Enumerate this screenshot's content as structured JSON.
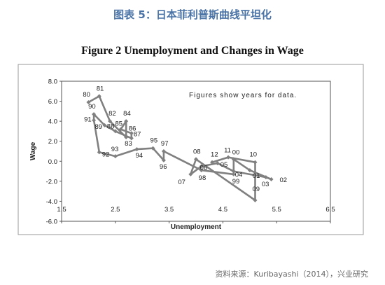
{
  "caption": "图表 5：日本菲利普斯曲线平坦化",
  "source": "资料来源：Kuribayashi（2014），兴业研究",
  "chart_data": {
    "type": "line",
    "title": "Figure 2  Unemployment and Changes in Wage",
    "xlabel": "Unemployment",
    "ylabel": "Wage",
    "note": "Figures show years for data.",
    "xlim": [
      1.5,
      6.5
    ],
    "ylim": [
      -6.0,
      8.0
    ],
    "xticks": [
      1.5,
      2.5,
      3.5,
      4.5,
      5.5,
      6.5
    ],
    "xtick_labels": [
      "1.5",
      "2.5",
      "3.5",
      "4.5",
      "5.5",
      "6.5"
    ],
    "yticks": [
      -6.0,
      -4.0,
      -2.0,
      0.0,
      2.0,
      4.0,
      6.0,
      8.0
    ],
    "ytick_labels": [
      "-6.0",
      "-4.0",
      "-2.0",
      "0.0",
      "2.0",
      "4.0",
      "6.0",
      "8.0"
    ],
    "line_color": "#808080",
    "grid": false,
    "series": [
      {
        "points": [
          {
            "label": "80",
            "x": 2.0,
            "y": 5.9
          },
          {
            "label": "81",
            "x": 2.2,
            "y": 6.5
          },
          {
            "label": "82",
            "x": 2.4,
            "y": 4.0
          },
          {
            "label": "83",
            "x": 2.7,
            "y": 2.4
          },
          {
            "label": "84",
            "x": 2.7,
            "y": 4.0
          },
          {
            "label": "85",
            "x": 2.6,
            "y": 3.2
          },
          {
            "label": "86",
            "x": 2.8,
            "y": 2.8
          },
          {
            "label": "87",
            "x": 2.8,
            "y": 2.3
          },
          {
            "label": "88",
            "x": 2.5,
            "y": 3.0
          },
          {
            "label": "89",
            "x": 2.3,
            "y": 3.6
          },
          {
            "label": "90",
            "x": 2.1,
            "y": 4.7
          },
          {
            "label": "91",
            "x": 2.1,
            "y": 4.1
          },
          {
            "label": "92",
            "x": 2.2,
            "y": 0.9
          },
          {
            "label": "93",
            "x": 2.5,
            "y": 0.5
          },
          {
            "label": "94",
            "x": 2.9,
            "y": 1.2
          },
          {
            "label": "95",
            "x": 3.2,
            "y": 1.3
          },
          {
            "label": "96",
            "x": 3.4,
            "y": 0.1
          },
          {
            "label": "97",
            "x": 3.4,
            "y": 1.0
          },
          {
            "label": "98",
            "x": 4.1,
            "y": -0.9
          },
          {
            "label": "99",
            "x": 4.7,
            "y": -1.3
          },
          {
            "label": "00",
            "x": 4.7,
            "y": 0.2
          },
          {
            "label": "01",
            "x": 5.0,
            "y": -0.9
          },
          {
            "label": "02",
            "x": 5.4,
            "y": -1.8
          },
          {
            "label": "03",
            "x": 5.3,
            "y": -1.6
          },
          {
            "label": "04",
            "x": 4.7,
            "y": -1.0
          },
          {
            "label": "05",
            "x": 4.4,
            "y": -0.2
          },
          {
            "label": "06",
            "x": 4.1,
            "y": -0.5
          },
          {
            "label": "07",
            "x": 3.9,
            "y": -1.3
          },
          {
            "label": "08",
            "x": 4.0,
            "y": 0.2
          },
          {
            "label": "09",
            "x": 5.1,
            "y": -3.9
          },
          {
            "label": "10",
            "x": 5.1,
            "y": -0.1
          },
          {
            "label": "11",
            "x": 4.6,
            "y": 0.4
          },
          {
            "label": "12",
            "x": 4.3,
            "y": -0.1
          }
        ]
      }
    ]
  }
}
